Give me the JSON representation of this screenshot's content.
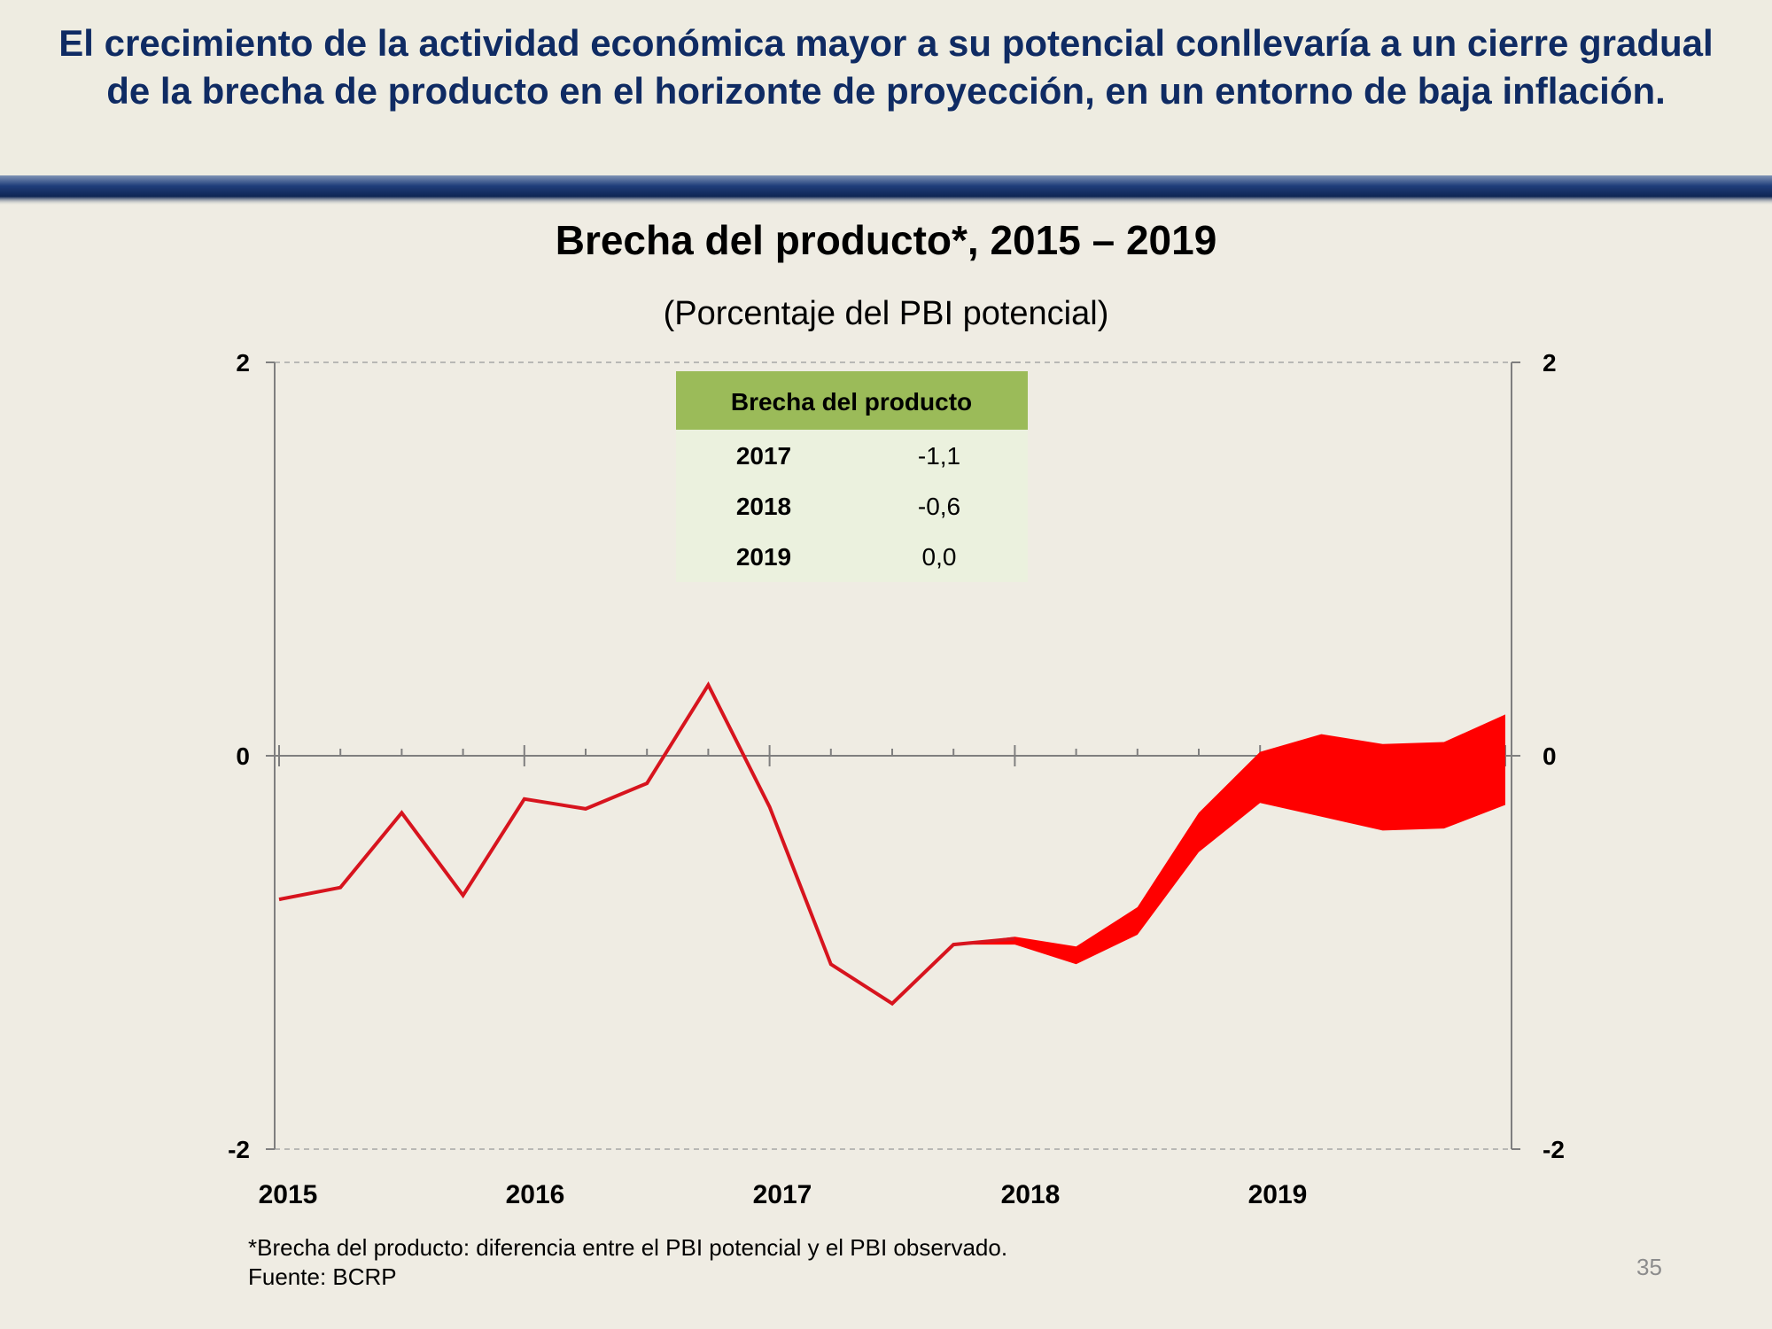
{
  "headline": "El crecimiento de la actividad económica mayor a su potencial conllevaría a un cierre gradual de la brecha de producto en el horizonte de proyección, en un entorno de baja inflación.",
  "chart_data": {
    "type": "line",
    "title": "Brecha del producto*, 2015 – 2019",
    "subtitle": "(Porcentaje del PBI potencial)",
    "ylim": [
      -2,
      2
    ],
    "xlim": [
      2015,
      2020
    ],
    "y_ticks": [
      "2",
      "0",
      "-2"
    ],
    "x_tick_labels": [
      "2015",
      "2016",
      "2017",
      "2018",
      "2019"
    ],
    "grid": "dashed lines at 2 and -2; zero line with quarterly tick marks",
    "observed": {
      "x": [
        2015.0,
        2015.25,
        2015.5,
        2015.75,
        2016.0,
        2016.25,
        2016.5,
        2016.75,
        2017.0,
        2017.25,
        2017.5,
        2017.75,
        2018.0
      ],
      "y": [
        -0.73,
        -0.67,
        -0.29,
        -0.71,
        -0.22,
        -0.27,
        -0.14,
        0.36,
        -0.26,
        -1.06,
        -1.26,
        -0.96,
        -0.93
      ]
    },
    "projection_band": {
      "x": [
        2017.75,
        2018.0,
        2018.25,
        2018.5,
        2018.75,
        2019.0,
        2019.25,
        2019.5,
        2019.75,
        2020.0
      ],
      "upper": [
        -0.96,
        -0.92,
        -0.97,
        -0.77,
        -0.29,
        0.02,
        0.11,
        0.06,
        0.07,
        0.21
      ],
      "lower": [
        -0.96,
        -0.96,
        -1.06,
        -0.91,
        -0.49,
        -0.24,
        -0.31,
        -0.38,
        -0.37,
        -0.25
      ]
    },
    "colors": {
      "line": "#D7141E",
      "band": "#FF0000",
      "table_header": "#9BBB59",
      "table_body": "#EBF1DE",
      "headline": "#0F2B63"
    },
    "table": {
      "header": "Brecha del producto",
      "rows": [
        {
          "year": "2017",
          "value": "-1,1"
        },
        {
          "year": "2018",
          "value": "-0,6"
        },
        {
          "year": "2019",
          "value": "0,0"
        }
      ]
    }
  },
  "footnote": "*Brecha del producto: diferencia entre el PBI potencial y el PBI observado.",
  "source": "Fuente: BCRP",
  "page_number": "35"
}
